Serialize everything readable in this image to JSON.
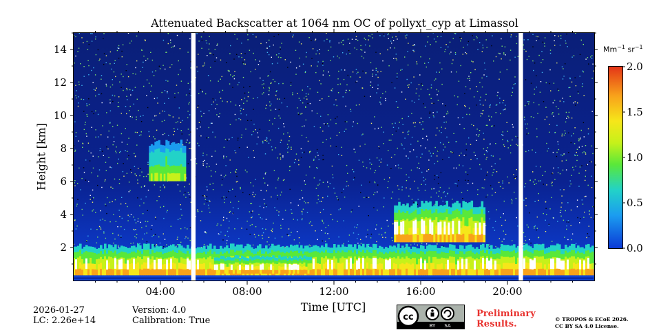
{
  "chart_data": {
    "type": "heatmap",
    "title": "Attenuated Backscatter at 1064 nm OC of pollyxt_cyp at Limassol",
    "xlabel": "Time [UTC]",
    "ylabel": "Height [km]",
    "xlim_hours": [
      0,
      24
    ],
    "ylim_km": [
      0,
      15
    ],
    "x_ticks": [
      {
        "hour": 4,
        "label": "04:00"
      },
      {
        "hour": 8,
        "label": "08:00"
      },
      {
        "hour": 12,
        "label": "12:00"
      },
      {
        "hour": 16,
        "label": "16:00"
      },
      {
        "hour": 20,
        "label": "20:00"
      }
    ],
    "y_ticks": [
      {
        "km": 2,
        "label": "2"
      },
      {
        "km": 4,
        "label": "4"
      },
      {
        "km": 6,
        "label": "6"
      },
      {
        "km": 8,
        "label": "8"
      },
      {
        "km": 10,
        "label": "10"
      },
      {
        "km": 12,
        "label": "12"
      },
      {
        "km": 14,
        "label": "14"
      }
    ],
    "colorbar": {
      "unit": "Mm",
      "unit_exp1": "−1",
      "unit_mid": " sr",
      "unit_exp2": "−1",
      "range": [
        0,
        2.0
      ],
      "ticks": [
        "0.0",
        "0.5",
        "1.0",
        "1.5",
        "2.0"
      ],
      "colors": [
        "#0b3ad6",
        "#1b9cf0",
        "#22d2c8",
        "#59e83a",
        "#c6f11a",
        "#f6e61a",
        "#f8a21b",
        "#e43517"
      ]
    },
    "data_gaps_hours": [
      [
        5.45,
        5.65
      ],
      [
        20.55,
        20.75
      ]
    ],
    "features": [
      {
        "name": "boundary-layer",
        "start_h": 0,
        "end_h": 24,
        "base_km": 0.3,
        "top_km": 2.2,
        "peak_value": 2.0
      },
      {
        "name": "dense-aerosol-core",
        "start_h": 6.5,
        "end_h": 11.0,
        "base_km": 0.4,
        "top_km": 1.5,
        "peak_value": 2.0
      },
      {
        "name": "cloud-layer",
        "start_h": 14.8,
        "end_h": 19.0,
        "base_km": 2.3,
        "top_km": 4.8,
        "peak_value": 2.0
      },
      {
        "name": "elevated-layer",
        "start_h": 3.5,
        "end_h": 5.2,
        "base_km": 6.0,
        "top_km": 8.5,
        "peak_value": 1.3
      }
    ]
  },
  "footer": {
    "date": "2026-01-27",
    "lc": "LC: 2.26e+14",
    "version": "Version: 4.0",
    "calibration": "Calibration: True",
    "preliminary_line1": "Preliminary",
    "preliminary_line2": "Results.",
    "copyright_line1": "© TROPOS & ECoE 2026.",
    "copyright_line2": "CC BY SA 4.0 License.",
    "badge_by": "BY",
    "badge_sa": "SA"
  }
}
